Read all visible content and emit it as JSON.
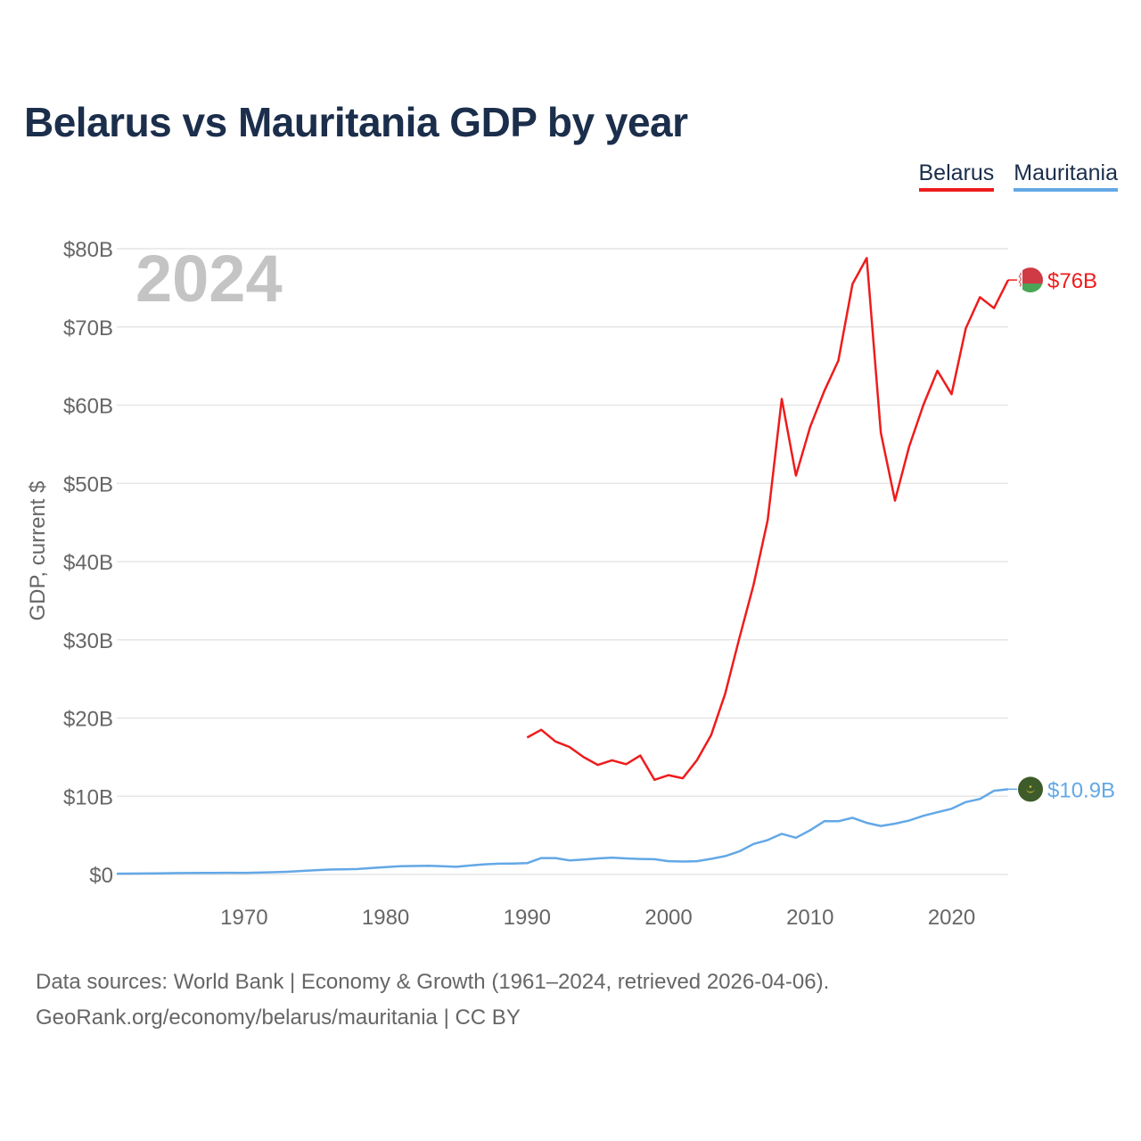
{
  "title": "Belarus vs Mauritania GDP by year",
  "colors": {
    "belarus": "#ee1c1c",
    "mauritania": "#63a8e6",
    "title": "#1b2e4b",
    "grid": "#e6e6e6",
    "axis_text": "#666666",
    "year_watermark": "#c4c4c4"
  },
  "legend": [
    {
      "label": "Belarus",
      "color": "#ee1c1c"
    },
    {
      "label": "Mauritania",
      "color": "#63a8e6"
    }
  ],
  "year_label": "2024",
  "footer": {
    "line1": "Data sources: World Bank | Economy & Growth (1961–2024, retrieved 2026-04-06).",
    "line2": "GeoRank.org/economy/belarus/mauritania | CC BY"
  },
  "chart_data": {
    "type": "line",
    "title": "Belarus vs Mauritania GDP by year",
    "xlabel": "",
    "ylabel": "GDP, current $",
    "xlim": [
      1961,
      2024
    ],
    "ylim": [
      0,
      80
    ],
    "x_ticks": [
      1970,
      1980,
      1990,
      2000,
      2010,
      2020
    ],
    "y_ticks": [
      0,
      10,
      20,
      30,
      40,
      50,
      60,
      70,
      80
    ],
    "y_tick_labels": [
      "$0",
      "$10B",
      "$20B",
      "$30B",
      "$40B",
      "$50B",
      "$60B",
      "$70B",
      "$80B"
    ],
    "grid": true,
    "legend_position": "top-right",
    "series": [
      {
        "name": "Belarus",
        "color": "#ee1c1c",
        "end_label": "$76B",
        "flag": "belarus-flag",
        "x": [
          1990,
          1991,
          1992,
          1993,
          1994,
          1995,
          1996,
          1997,
          1998,
          1999,
          2000,
          2001,
          2002,
          2003,
          2004,
          2005,
          2006,
          2007,
          2008,
          2009,
          2010,
          2011,
          2012,
          2013,
          2014,
          2015,
          2016,
          2017,
          2018,
          2019,
          2020,
          2021,
          2022,
          2023,
          2024
        ],
        "values": [
          17.5,
          18.5,
          17.0,
          16.3,
          15.0,
          14.0,
          14.6,
          14.1,
          15.2,
          12.1,
          12.7,
          12.3,
          14.6,
          17.8,
          23.1,
          30.2,
          37.0,
          45.3,
          60.8,
          51.0,
          57.2,
          61.8,
          65.7,
          75.5,
          78.8,
          56.5,
          47.8,
          54.7,
          60.0,
          64.4,
          61.4,
          69.8,
          73.8,
          72.4,
          76.0
        ]
      },
      {
        "name": "Mauritania",
        "color": "#63a8e6",
        "end_label": "$10.9B",
        "flag": "mauritania-flag",
        "x": [
          1961,
          1962,
          1963,
          1964,
          1965,
          1966,
          1967,
          1968,
          1969,
          1970,
          1971,
          1972,
          1973,
          1974,
          1975,
          1976,
          1977,
          1978,
          1979,
          1980,
          1981,
          1982,
          1983,
          1984,
          1985,
          1986,
          1987,
          1988,
          1989,
          1990,
          1991,
          1992,
          1993,
          1994,
          1995,
          1996,
          1997,
          1998,
          1999,
          2000,
          2001,
          2002,
          2003,
          2004,
          2005,
          2006,
          2007,
          2008,
          2009,
          2010,
          2011,
          2012,
          2013,
          2014,
          2015,
          2016,
          2017,
          2018,
          2019,
          2020,
          2021,
          2022,
          2023,
          2024
        ],
        "values": [
          0.1,
          0.11,
          0.12,
          0.15,
          0.17,
          0.18,
          0.19,
          0.21,
          0.22,
          0.21,
          0.24,
          0.28,
          0.34,
          0.45,
          0.55,
          0.63,
          0.66,
          0.7,
          0.83,
          0.95,
          1.05,
          1.08,
          1.1,
          1.05,
          0.98,
          1.15,
          1.3,
          1.38,
          1.4,
          1.45,
          2.1,
          2.1,
          1.8,
          1.9,
          2.05,
          2.15,
          2.05,
          1.98,
          1.95,
          1.7,
          1.65,
          1.7,
          2.0,
          2.35,
          2.95,
          3.9,
          4.4,
          5.2,
          4.7,
          5.65,
          6.8,
          6.8,
          7.25,
          6.6,
          6.2,
          6.5,
          6.9,
          7.5,
          7.95,
          8.4,
          9.25,
          9.65,
          10.7,
          10.9
        ]
      }
    ]
  }
}
